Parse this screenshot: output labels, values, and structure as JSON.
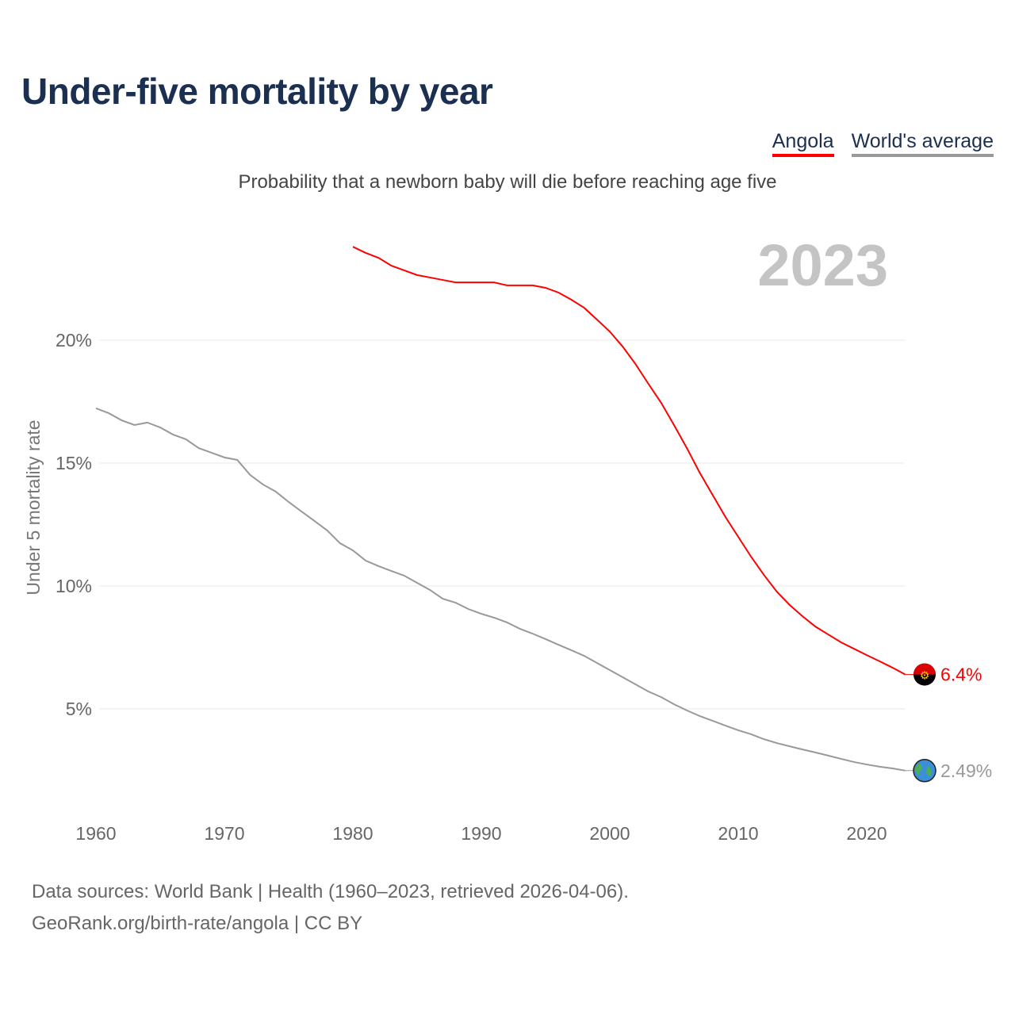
{
  "title": "Under-five mortality by year",
  "legend": [
    {
      "label": "Angola",
      "color": "#ff0000"
    },
    {
      "label": "World's average",
      "color": "#999999"
    }
  ],
  "subtitle": "Probability that a newborn baby will die before reaching age five",
  "footer": {
    "line1": "Data sources: World Bank | Health (1960–2023, retrieved 2026-04-06).",
    "line2": "GeoRank.org/birth-rate/angola | CC BY"
  },
  "chart_data": {
    "type": "line",
    "title": "Under-five mortality by year",
    "ylabel": "Under 5 mortality rate",
    "year_label": "2023",
    "xlim": [
      1960,
      2023
    ],
    "ylim": [
      0,
      25
    ],
    "xticks": [
      {
        "v": 1960,
        "label": "1960"
      },
      {
        "v": 1970,
        "label": "1970"
      },
      {
        "v": 1980,
        "label": "1980"
      },
      {
        "v": 1990,
        "label": "1990"
      },
      {
        "v": 2000,
        "label": "2000"
      },
      {
        "v": 2010,
        "label": "2010"
      },
      {
        "v": 2020,
        "label": "2020"
      }
    ],
    "yticks": [
      {
        "v": 5,
        "label": "5%"
      },
      {
        "v": 10,
        "label": "10%"
      },
      {
        "v": 15,
        "label": "15%"
      },
      {
        "v": 20,
        "label": "20%"
      }
    ],
    "series": [
      {
        "name": "Angola",
        "color": "#ff0000",
        "end_label": "6.4%",
        "icon": "angola-flag-icon",
        "start": 1980,
        "values": [
          23.8,
          23.55,
          23.35,
          23.03,
          22.84,
          22.65,
          22.55,
          22.45,
          22.35,
          22.35,
          22.35,
          22.35,
          22.23,
          22.23,
          22.23,
          22.13,
          21.94,
          21.65,
          21.32,
          20.84,
          20.35,
          19.74,
          19.03,
          18.23,
          17.45,
          16.55,
          15.61,
          14.61,
          13.71,
          12.81,
          12.0,
          11.19,
          10.45,
          9.77,
          9.23,
          8.77,
          8.35,
          8.03,
          7.71,
          7.45,
          7.19,
          6.94,
          6.68,
          6.4
        ]
      },
      {
        "name": "World's average",
        "color": "#999999",
        "end_label": "2.49%",
        "icon": "globe-icon",
        "start": 1960,
        "values": [
          17.23,
          17.03,
          16.74,
          16.55,
          16.65,
          16.45,
          16.16,
          15.97,
          15.61,
          15.42,
          15.23,
          15.13,
          14.52,
          14.13,
          13.84,
          13.42,
          13.03,
          12.65,
          12.26,
          11.74,
          11.45,
          11.03,
          10.81,
          10.61,
          10.42,
          10.13,
          9.84,
          9.48,
          9.32,
          9.06,
          8.87,
          8.71,
          8.52,
          8.26,
          8.06,
          7.84,
          7.61,
          7.39,
          7.16,
          6.87,
          6.58,
          6.29,
          6.0,
          5.71,
          5.48,
          5.19,
          4.94,
          4.71,
          4.52,
          4.32,
          4.13,
          3.97,
          3.77,
          3.61,
          3.48,
          3.35,
          3.23,
          3.1,
          2.97,
          2.84,
          2.74,
          2.65,
          2.58,
          2.49
        ]
      }
    ]
  }
}
